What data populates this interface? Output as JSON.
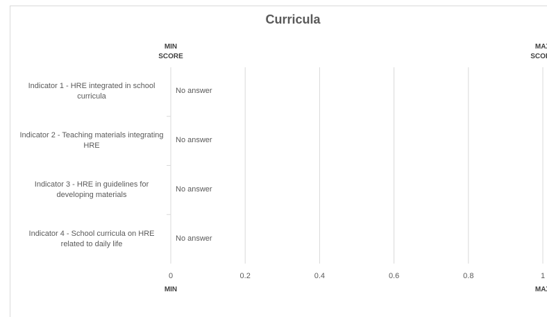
{
  "chart_data": {
    "type": "bar",
    "orientation": "horizontal",
    "title": "Curricula",
    "categories": [
      "Indicator 1 - HRE integrated in school curricula",
      "Indicator 2 - Teaching materials integrating HRE",
      "Indicator 3 - HRE in guidelines for developing materials",
      "Indicator 4 - School curricula on HRE related to daily life"
    ],
    "values": [
      null,
      null,
      null,
      null
    ],
    "value_labels": [
      "No answer",
      "No answer",
      "No answer",
      "No answer"
    ],
    "xlim": [
      0,
      1
    ],
    "xticks": [
      0,
      0.2,
      0.4,
      0.6,
      0.8,
      1
    ],
    "grid": true,
    "annotations": {
      "min_top": "MIN SCORE",
      "max_top": "MAX SCORE",
      "min_bottom": "MIN",
      "max_bottom": "MAX"
    }
  }
}
